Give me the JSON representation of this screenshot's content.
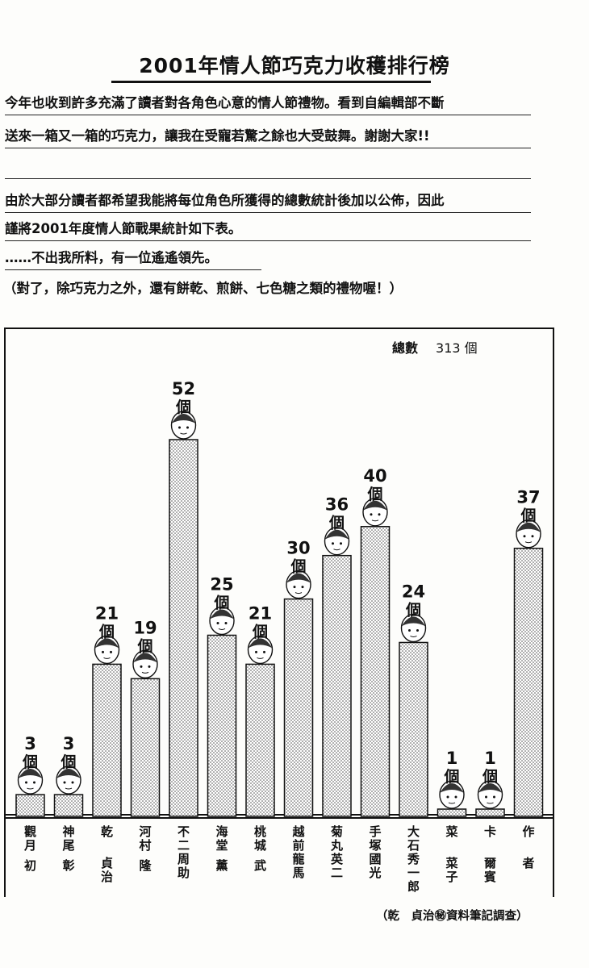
{
  "page": {
    "title": "2001年情人節巧克力收穫排行榜",
    "lines": [
      "今年也收到許多充滿了讀者對各角色心意的情人節禮物。看到自編輯部不斷",
      "送來一箱又一箱的巧克力，讓我在受寵若驚之餘也大受鼓舞。謝謝大家!!",
      "",
      "由於大部分讀者都希望我能將每位角色所獲得的總數統計後加以公佈，因此",
      "謹將2001年度情人節戰果統計如下表。",
      "……不出我所料，有一位遙遙領先。"
    ],
    "note": "（對了，除巧克力之外，還有餅乾、煎餅、七色糖之類的禮物喔！）",
    "total_label": "總數",
    "total_value": "313 個",
    "source": "（乾　貞治㊙資料筆記調查）"
  },
  "chart_data": {
    "type": "bar",
    "unit": "個",
    "categories": [
      {
        "line1": "觀月",
        "line2": "初"
      },
      {
        "line1": "神尾",
        "line2": "彰"
      },
      {
        "line1": "乾",
        "line2": "貞治"
      },
      {
        "line1": "河村",
        "line2": "隆"
      },
      {
        "line1": "不二周助",
        "line2": ""
      },
      {
        "line1": "海堂",
        "line2": "薰"
      },
      {
        "line1": "桃城",
        "line2": "武"
      },
      {
        "line1": "越前龍馬",
        "line2": ""
      },
      {
        "line1": "菊丸英二",
        "line2": ""
      },
      {
        "line1": "手塚國光",
        "line2": ""
      },
      {
        "line1": "大石秀一郎",
        "line2": ""
      },
      {
        "line1": "菜",
        "line2": "菜子"
      },
      {
        "line1": "卡",
        "line2": "爾賓"
      },
      {
        "line1": "作",
        "line2": "者"
      }
    ],
    "values": [
      3,
      3,
      21,
      19,
      52,
      25,
      21,
      30,
      36,
      40,
      24,
      1,
      1,
      37
    ],
    "ylim": [
      0,
      52
    ],
    "bar_fill": "dotted",
    "frame_color": "#111111"
  }
}
